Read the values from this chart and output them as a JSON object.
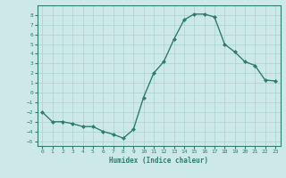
{
  "x": [
    0,
    1,
    2,
    3,
    4,
    5,
    6,
    7,
    8,
    9,
    10,
    11,
    12,
    13,
    14,
    15,
    16,
    17,
    18,
    19,
    20,
    21,
    22,
    23
  ],
  "y": [
    -2,
    -3,
    -3,
    -3.2,
    -3.5,
    -3.5,
    -4,
    -4.3,
    -4.7,
    -3.8,
    -0.5,
    2,
    3.2,
    5.5,
    7.5,
    8.1,
    8.1,
    7.8,
    5,
    4.2,
    3.2,
    2.8,
    1.3,
    1.2
  ],
  "ylim": [
    -5.5,
    9
  ],
  "xlim": [
    -0.5,
    23.5
  ],
  "yticks": [
    -5,
    -4,
    -3,
    -2,
    -1,
    0,
    1,
    2,
    3,
    4,
    5,
    6,
    7,
    8
  ],
  "xticks": [
    0,
    1,
    2,
    3,
    4,
    5,
    6,
    7,
    8,
    9,
    10,
    11,
    12,
    13,
    14,
    15,
    16,
    17,
    18,
    19,
    20,
    21,
    22,
    23
  ],
  "xlabel": "Humidex (Indice chaleur)",
  "line_color": "#2e7d6e",
  "marker": "D",
  "marker_size": 2,
  "bg_color": "#cce8e8",
  "grid_color": "#aad0d0",
  "axis_color": "#2e7d6e",
  "font_family": "monospace",
  "tick_fontsize": 4.5,
  "xlabel_fontsize": 5.5
}
